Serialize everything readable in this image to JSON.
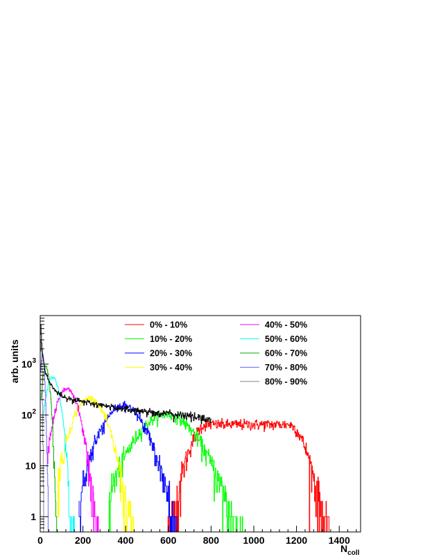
{
  "chart_data": {
    "type": "line",
    "xlabel": "N",
    "xlabel_sub": "coll",
    "ylabel": "arb. units",
    "xlim": [
      0,
      1500
    ],
    "ylim": [
      0.5,
      9000
    ],
    "y_scale": "log",
    "grid": false,
    "legend_position": "top",
    "x_ticks": [
      0,
      200,
      400,
      600,
      800,
      1000,
      1200,
      1400
    ],
    "x_tick_labels": [
      "0",
      "200",
      "400",
      "600",
      "800",
      "1000",
      "1200",
      "1400"
    ],
    "y_ticks": [
      1,
      10,
      100,
      1000
    ],
    "y_tick_labels": [
      {
        "base": "1",
        "exp": ""
      },
      {
        "base": "10",
        "exp": ""
      },
      {
        "base": "10",
        "exp": "2"
      },
      {
        "base": "10",
        "exp": "3"
      }
    ],
    "total": {
      "color": "#000000",
      "x": [
        2,
        5,
        10,
        20,
        40,
        70,
        100,
        150,
        200,
        300,
        400,
        500,
        600,
        700,
        800
      ],
      "y": [
        6000,
        3000,
        1500,
        800,
        450,
        300,
        240,
        200,
        180,
        150,
        130,
        115,
        105,
        95,
        80
      ]
    },
    "series": [
      {
        "name": "0% - 10%",
        "color": "#ff0000",
        "peak_x": 970,
        "peak_y": 65,
        "sigma": 190,
        "xmin": 520,
        "xmax": 1420,
        "shape": "plateau"
      },
      {
        "name": "10% - 20%",
        "color": "#00ff00",
        "peak_x": 590,
        "peak_y": 100,
        "sigma": 100,
        "xmin": 320,
        "xmax": 960
      },
      {
        "name": "20% - 30%",
        "color": "#0000ff",
        "peak_x": 390,
        "peak_y": 150,
        "sigma": 72,
        "xmin": 180,
        "xmax": 660
      },
      {
        "name": "30% - 40%",
        "color": "#ffff00",
        "peak_x": 230,
        "peak_y": 215,
        "sigma": 55,
        "xmin": 80,
        "xmax": 450
      },
      {
        "name": "40% - 50%",
        "color": "#ff00ff",
        "peak_x": 125,
        "peak_y": 330,
        "sigma": 38,
        "xmin": 30,
        "xmax": 290
      },
      {
        "name": "50% - 60%",
        "color": "#00ffff",
        "peak_x": 58,
        "peak_y": 560,
        "sigma": 24,
        "xmin": 8,
        "xmax": 170
      },
      {
        "name": "60% - 70%",
        "color": "#00aa00",
        "peak_x": 26,
        "peak_y": 900,
        "sigma": 13,
        "xmin": 3,
        "xmax": 100
      },
      {
        "name": "70% - 80%",
        "color": "#6666ff",
        "peak_x": 10,
        "peak_y": 1600,
        "sigma": 7,
        "xmin": 1,
        "xmax": 55
      },
      {
        "name": "80% - 90%",
        "color": "#808080",
        "peak_x": 3,
        "peak_y": 3000,
        "sigma": 3,
        "xmin": 0,
        "xmax": 25
      }
    ]
  }
}
